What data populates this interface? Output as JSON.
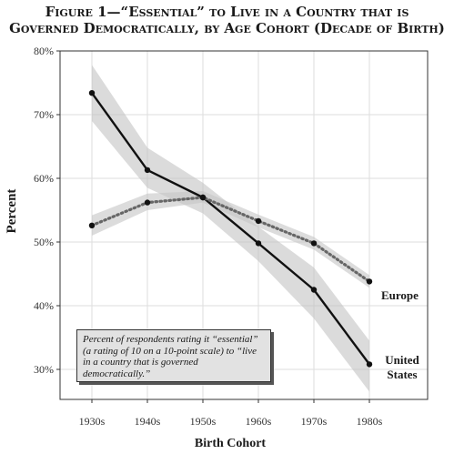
{
  "figure": {
    "title_line1": "Figure 1—“Essential” to Live in a Country that is",
    "title_line2": "Governed Democratically, by Age Cohort (Decade of Birth)",
    "note": "Percent of respondents rating it “essential” (a rating of 10 on a 10-point scale) to “live in a country that is governed democratically.”"
  },
  "chart_data": {
    "type": "line",
    "xlabel": "Birth Cohort",
    "ylabel": "Percent",
    "categories": [
      "1930s",
      "1940s",
      "1950s",
      "1960s",
      "1970s",
      "1980s"
    ],
    "ylim": [
      26,
      80
    ],
    "yticks": [
      30,
      40,
      50,
      60,
      70,
      80
    ],
    "ytick_labels": [
      "30%",
      "40%",
      "50%",
      "60%",
      "70%",
      "80%"
    ],
    "grid": true,
    "series": [
      {
        "name": "United States",
        "style": "solid",
        "color": "#111111",
        "values": [
          73.4,
          61.3,
          57.0,
          49.8,
          42.5,
          30.8
        ],
        "ci_low": [
          69.0,
          58.5,
          54.5,
          47.0,
          38.0,
          26.5
        ],
        "ci_high": [
          77.8,
          64.8,
          59.3,
          52.4,
          46.0,
          34.5
        ]
      },
      {
        "name": "Europe",
        "style": "dotted",
        "color": "#666666",
        "values": [
          52.6,
          56.2,
          57.0,
          53.3,
          49.8,
          43.8
        ],
        "ci_low": [
          51.0,
          55.0,
          56.2,
          52.3,
          48.8,
          42.8
        ],
        "ci_high": [
          54.2,
          57.6,
          58.0,
          54.3,
          50.8,
          44.8
        ]
      }
    ],
    "series_labels": {
      "europe": "Europe",
      "us_line1": "United",
      "us_line2": "States"
    }
  }
}
